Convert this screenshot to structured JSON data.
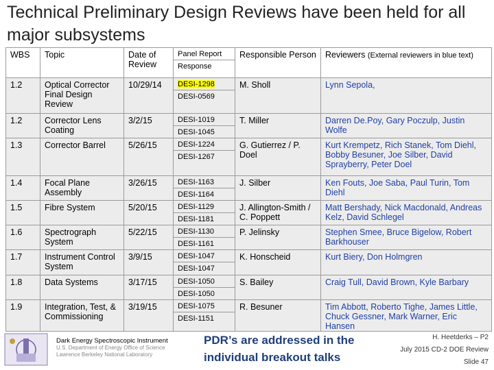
{
  "title": "Technical Preliminary Design Reviews have been held for all major subsystems",
  "table": {
    "headers": {
      "wbs": "WBS",
      "topic": "Topic",
      "date": "Date of Review",
      "panel_report": "Panel Report",
      "response": "Response",
      "responsible": "Responsible Person",
      "reviewers": "Reviewers",
      "reviewers_note": "(External reviewers in blue text)"
    },
    "rows": [
      {
        "wbs": "1.2",
        "topic": "Optical Corrector Final Design Review",
        "date": "10/29/14",
        "report": "DESI-1298",
        "response": "DESI-0569",
        "person": "M. Sholl",
        "reviewers_black": "",
        "reviewers_blue": "Lynn Sepola,"
      },
      {
        "wbs": "1.2",
        "topic": "Corrector Lens Coating",
        "date": "3/2/15",
        "report": "DESI-1019",
        "response": "DESI-1045",
        "person": "T. Miller",
        "reviewers_black": "",
        "reviewers_blue": "Darren De.Poy, Gary Poczulp, Justin Wolfe"
      },
      {
        "wbs": "1.3",
        "topic": "Corrector Barrel",
        "date": "5/26/15",
        "report": "DESI-1224",
        "response": "DESI-1267",
        "person": "G. Gutierrez / P. Doel",
        "reviewers_black": "",
        "reviewers_blue": "Kurt Krempetz, Rich Stanek, Tom Diehl, Bobby Besuner, Joe Silber, David Sprayberry, Peter Doel"
      },
      {
        "wbs": "1.4",
        "topic": "Focal Plane Assembly",
        "date": "3/26/15",
        "report": "DESI-1163",
        "response": "DESI-1164",
        "person": "J. Silber",
        "reviewers_black": "",
        "reviewers_blue": "Ken Fouts, Joe Saba, Paul Turin, Tom Diehl"
      },
      {
        "wbs": "1.5",
        "topic": "Fibre System",
        "date": "5/20/15",
        "report": "DESI-1129",
        "response": "DESI-1181",
        "person": "J. Allington-Smith / C. Poppett",
        "reviewers_black": "",
        "reviewers_blue": "Matt Bershady, Nick Macdonald, Andreas Kelz, David Schlegel"
      },
      {
        "wbs": "1.6",
        "topic": "Spectrograph System",
        "date": "5/22/15",
        "report": "DESI-1130",
        "response": "DESI-1161",
        "person": "P. Jelinsky",
        "reviewers_black": "",
        "reviewers_blue": "Stephen Smee, Bruce Bigelow, Robert Barkhouser"
      },
      {
        "wbs": "1.7",
        "topic": "Instrument Control System",
        "date": "3/9/15",
        "report": "DESI-1047",
        "response": "DESI-1047",
        "person": "K. Honscheid",
        "reviewers_black": "",
        "reviewers_blue": "Kurt Biery, Don Holmgren"
      },
      {
        "wbs": "1.8",
        "topic": "Data Systems",
        "date": "3/17/15",
        "report": "DESI-1050",
        "response": "DESI-1050",
        "person": "S. Bailey",
        "reviewers_black": "",
        "reviewers_blue": "Craig Tull, David Brown, Kyle Barbary"
      },
      {
        "wbs": "1.9",
        "topic": "Integration, Test, & Commissioning",
        "date": "3/19/15",
        "report": "DESI-1075",
        "response": "DESI-1151",
        "person": "R. Besuner",
        "reviewers_black": "",
        "reviewers_blue": "Tim Abbott, Roberto Tighe, James Little, Chuck Gessner, Mark Warner, Eric Hansen"
      }
    ]
  },
  "footer": {
    "institution": "Dark Energy Spectroscopic Instrument",
    "line2": "U.S. Department of Energy Office of Science",
    "line3": "Lawrence Berkeley National Laboratory",
    "message": "PDR’s are addressed in the individual breakout talks",
    "presenter": "H. Heetderks – P2",
    "event": "July 2015 CD-2 DOE Review",
    "slide": "Slide 47"
  },
  "colors": {
    "reviewer_blue": "#1f3fa8",
    "highlight": "#ffff00",
    "message_blue": "#1f3f7a"
  }
}
